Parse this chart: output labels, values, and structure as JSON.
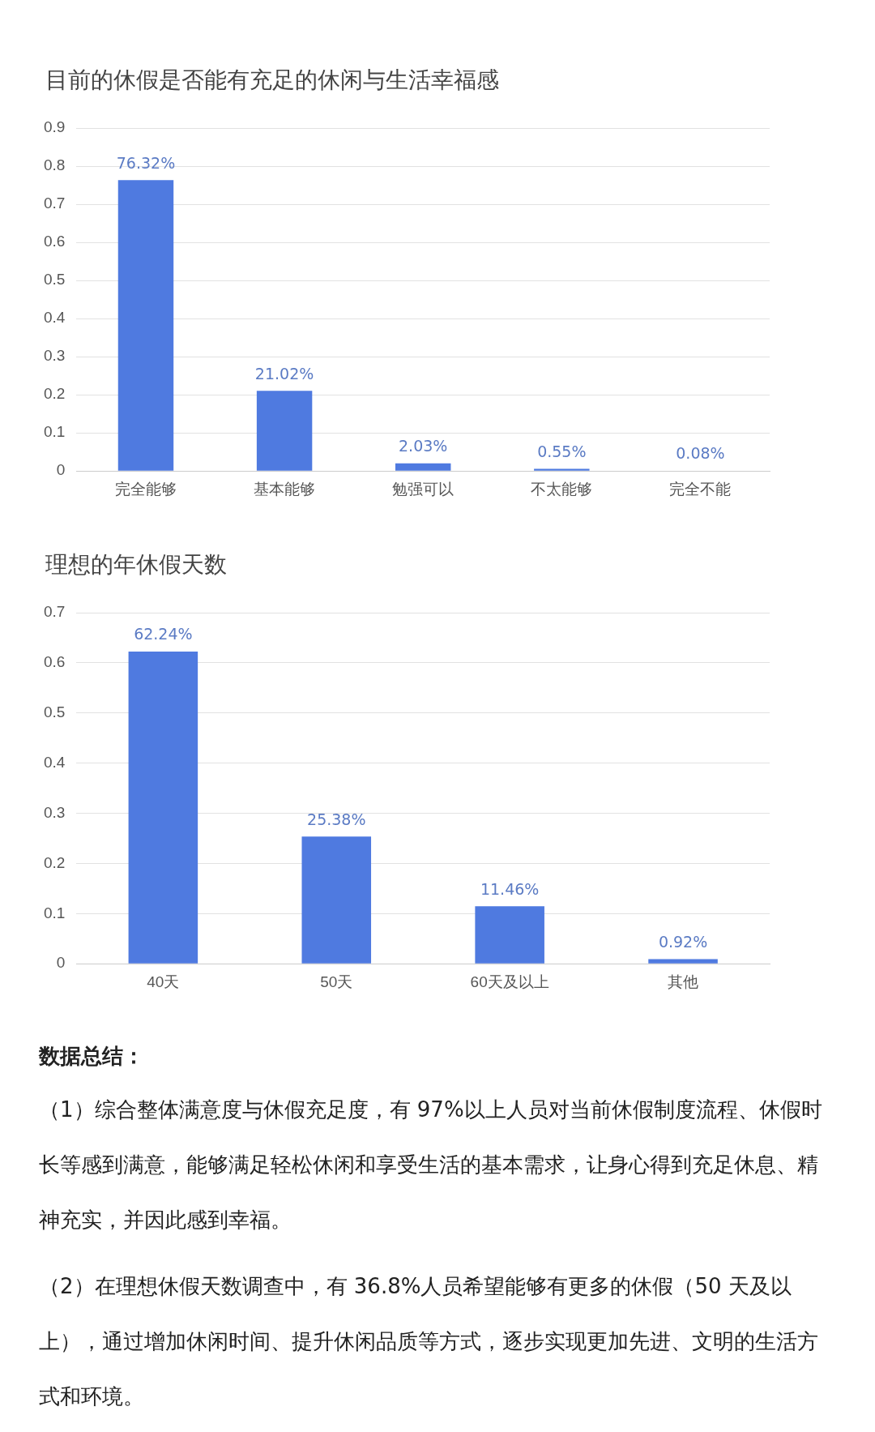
{
  "chart_data": [
    {
      "type": "bar",
      "title": "目前的休假是否能有充足的休闲与生活幸福感",
      "categories": [
        "完全能够",
        "基本能够",
        "勉强可以",
        "不太能够",
        "完全不能"
      ],
      "values": [
        0.7632,
        0.2102,
        0.0203,
        0.0055,
        0.0008
      ],
      "value_labels": [
        "76.32%",
        "21.02%",
        "2.03%",
        "0.55%",
        "0.08%"
      ],
      "color": "#4f7ae0",
      "ylim": [
        0,
        0.9
      ],
      "yticks": [
        0,
        0.1,
        0.2,
        0.3,
        0.4,
        0.5,
        0.6,
        0.7,
        0.8,
        0.9
      ],
      "grid": "y"
    },
    {
      "type": "bar",
      "title": "理想的年休假天数",
      "categories": [
        "40天",
        "50天",
        "60天及以上",
        "其他"
      ],
      "values": [
        0.6224,
        0.2538,
        0.1146,
        0.0092
      ],
      "value_labels": [
        "62.24%",
        "25.38%",
        "11.46%",
        "0.92%"
      ],
      "color": "#4f7ae0",
      "ylim": [
        0,
        0.7
      ],
      "yticks": [
        0,
        0.1,
        0.2,
        0.3,
        0.4,
        0.5,
        0.6,
        0.7
      ],
      "grid": "y"
    },
    {
      "type": "other",
      "title": "数据总结：",
      "annotations": [
        "（1）综合整体满意度与休假充足度，有 97%以上人员对当前休假制度流程、休假时长等感到满意，能够满足轻松休闲和享受生活的基本需求，让身心得到充足休息、精神充实，并因此感到幸福。",
        "（2）在理想休假天数调查中，有 36.8%人员希望能够有更多的休假（50 天及以上），通过增加休闲时间、提升休闲品质等方式，逐步实现更加先进、文明的生活方式和环境。"
      ]
    }
  ]
}
